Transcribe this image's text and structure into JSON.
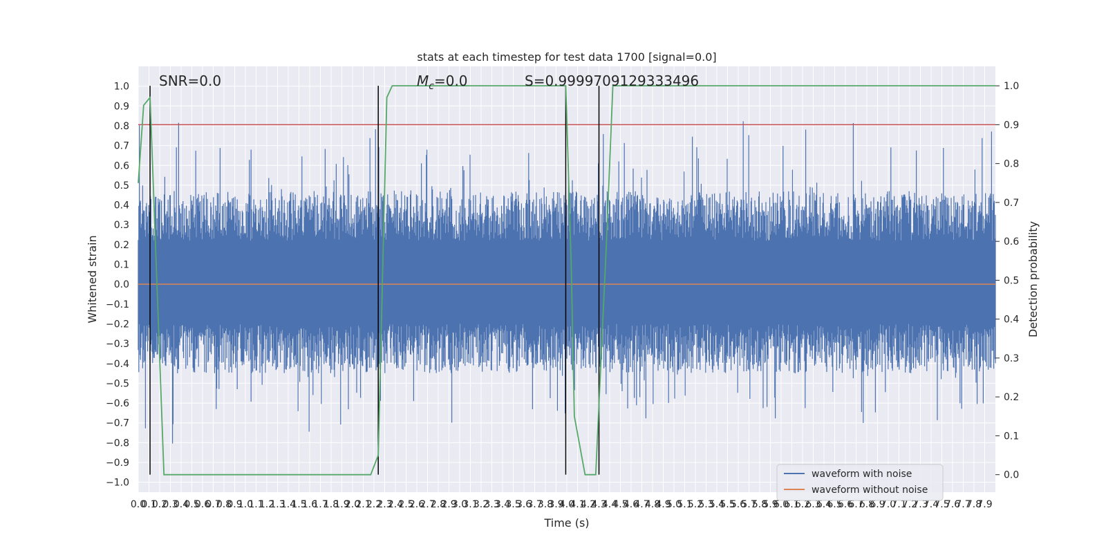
{
  "chart_data": {
    "type": "line",
    "title": "stats at each timestep for test data 1700 [signal=0.0]",
    "xlabel": "Time (s)",
    "ylabel": "Whitened strain",
    "y2label": "Detection probability",
    "xlim": [
      0,
      8.0
    ],
    "ylim": [
      -1.05,
      1.1
    ],
    "y2lim": [
      -0.045,
      1.05
    ],
    "x_ticks": [
      0.0,
      0.1,
      0.2,
      0.3,
      0.4,
      0.5,
      0.6,
      0.7,
      0.8,
      0.9,
      1.0,
      1.1,
      1.2,
      1.3,
      1.4,
      1.5,
      1.6,
      1.7,
      1.8,
      1.9,
      2.0,
      2.1,
      2.2,
      2.3,
      2.4,
      2.5,
      2.6,
      2.7,
      2.8,
      2.9,
      3.0,
      3.1,
      3.2,
      3.3,
      3.4,
      3.5,
      3.6,
      3.7,
      3.8,
      3.9,
      4.0,
      4.1,
      4.2,
      4.3,
      4.4,
      4.5,
      4.6,
      4.7,
      4.8,
      4.9,
      5.0,
      5.1,
      5.2,
      5.3,
      5.4,
      5.5,
      5.6,
      5.7,
      5.8,
      5.9,
      6.0,
      6.1,
      6.2,
      6.3,
      6.4,
      6.5,
      6.6,
      6.7,
      6.8,
      6.9,
      7.0,
      7.1,
      7.2,
      7.3,
      7.4,
      7.5,
      7.6,
      7.7,
      7.8,
      7.9
    ],
    "y_ticks": [
      1.0,
      0.9,
      0.8,
      0.7,
      0.6,
      0.5,
      0.4,
      0.3,
      0.2,
      0.1,
      0.0,
      -0.1,
      -0.2,
      -0.3,
      -0.4,
      -0.5,
      -0.6,
      -0.7,
      -0.8,
      -0.9,
      -1.0
    ],
    "y2_ticks": [
      1.0,
      0.9,
      0.8,
      0.7,
      0.6,
      0.5,
      0.4,
      0.3,
      0.2,
      0.1,
      0.0
    ],
    "annotations": {
      "snr": "SNR=0.0",
      "mc_symbol": "M",
      "mc_sub": "c",
      "mc_value": "=0.0",
      "score": "S=0.9999709129333496"
    },
    "legend": {
      "placement": "lower-right",
      "entries": [
        "waveform with noise",
        "waveform without noise"
      ]
    },
    "threshold_y2": 0.9,
    "vertical_lines_x": [
      0.11,
      2.24,
      3.99,
      4.3
    ],
    "series": [
      {
        "name": "waveform with noise",
        "color": "#4c72b0",
        "kind": "noise",
        "envelope": [
          -0.6,
          0.45
        ]
      },
      {
        "name": "waveform without noise",
        "color": "#dd8452",
        "kind": "line",
        "x": [
          0,
          8.0
        ],
        "values": [
          0.0,
          0.0
        ]
      },
      {
        "name": "",
        "color": "#55a868",
        "kind": "line",
        "axis": "y2",
        "x": [
          0.0,
          0.05,
          0.11,
          0.24,
          0.34,
          0.5,
          1.0,
          1.5,
          2.0,
          2.1,
          2.17,
          2.24,
          2.32,
          2.37,
          2.5,
          3.0,
          3.5,
          3.99,
          4.04,
          4.07,
          4.17,
          4.27,
          4.37,
          4.43,
          4.6,
          5.0,
          6.0,
          7.0,
          8.0
        ],
        "values": [
          0.75,
          0.95,
          0.97,
          0.0,
          0.0,
          0.0,
          0.0,
          0.0,
          0.0,
          0.0,
          0.0,
          0.05,
          0.97,
          1.0,
          1.0,
          1.0,
          1.0,
          1.0,
          0.55,
          0.15,
          0.0,
          0.0,
          0.6,
          1.0,
          1.0,
          1.0,
          1.0,
          1.0,
          1.0
        ]
      },
      {
        "name": "",
        "color": "#c44e52",
        "kind": "hline",
        "axis": "y2",
        "values": [
          0.9
        ]
      }
    ],
    "grid": true,
    "background": "#eaeaf2",
    "grid_color": "#ffffff"
  }
}
